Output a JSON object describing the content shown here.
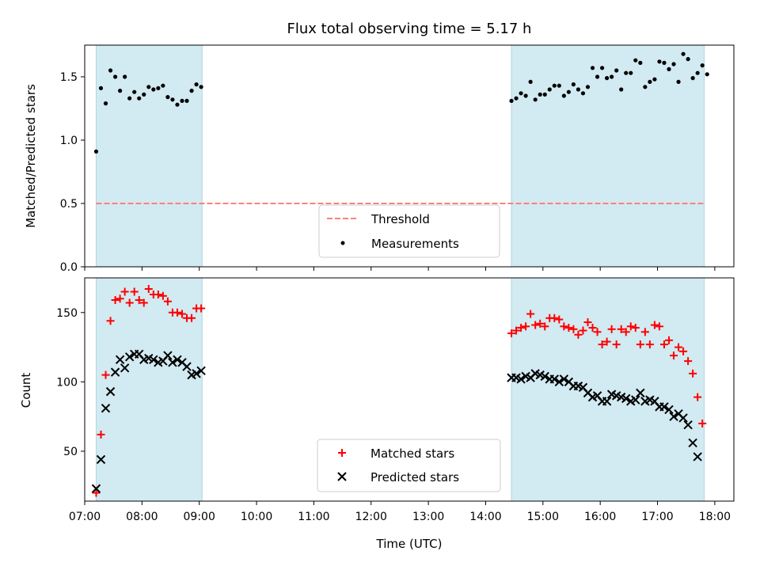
{
  "chart_data": [
    {
      "type": "scatter",
      "title": "Flux total observing time = 5.17 h",
      "xlabel": "",
      "ylabel": "Matched/Predicted stars",
      "xlim": [
        "07:00",
        "18:20"
      ],
      "ylim": [
        0,
        1.75
      ],
      "yticks": [
        "0.0",
        "0.5",
        "1.0",
        "1.5"
      ],
      "grid": false,
      "legend_position": "bottom-center",
      "observing_windows": [
        [
          "07:12",
          "09:03"
        ],
        [
          "14:27",
          "17:49"
        ]
      ],
      "colors": {
        "window": "#add8e6",
        "threshold": "#ff7f7f",
        "measurements": "#000000"
      },
      "threshold": {
        "name": "Threshold",
        "value": 0.5,
        "x_range": [
          "07:12",
          "17:49"
        ]
      },
      "series": [
        {
          "name": "Measurements",
          "points": [
            [
              "07:12",
              0.91
            ],
            [
              "07:17",
              1.41
            ],
            [
              "07:22",
              1.29
            ],
            [
              "07:27",
              1.55
            ],
            [
              "07:32",
              1.5
            ],
            [
              "07:37",
              1.39
            ],
            [
              "07:42",
              1.5
            ],
            [
              "07:47",
              1.33
            ],
            [
              "07:52",
              1.38
            ],
            [
              "07:57",
              1.33
            ],
            [
              "08:02",
              1.36
            ],
            [
              "08:07",
              1.42
            ],
            [
              "08:12",
              1.4
            ],
            [
              "08:17",
              1.41
            ],
            [
              "08:22",
              1.43
            ],
            [
              "08:27",
              1.34
            ],
            [
              "08:32",
              1.32
            ],
            [
              "08:37",
              1.28
            ],
            [
              "08:42",
              1.31
            ],
            [
              "08:47",
              1.31
            ],
            [
              "08:52",
              1.39
            ],
            [
              "08:57",
              1.44
            ],
            [
              "09:02",
              1.42
            ],
            [
              "14:27",
              1.31
            ],
            [
              "14:32",
              1.33
            ],
            [
              "14:37",
              1.37
            ],
            [
              "14:42",
              1.35
            ],
            [
              "14:47",
              1.46
            ],
            [
              "14:52",
              1.32
            ],
            [
              "14:57",
              1.36
            ],
            [
              "15:02",
              1.36
            ],
            [
              "15:07",
              1.4
            ],
            [
              "15:12",
              1.43
            ],
            [
              "15:17",
              1.43
            ],
            [
              "15:22",
              1.35
            ],
            [
              "15:27",
              1.38
            ],
            [
              "15:32",
              1.44
            ],
            [
              "15:37",
              1.4
            ],
            [
              "15:42",
              1.37
            ],
            [
              "15:47",
              1.42
            ],
            [
              "15:52",
              1.57
            ],
            [
              "15:57",
              1.5
            ],
            [
              "16:02",
              1.57
            ],
            [
              "16:07",
              1.49
            ],
            [
              "16:12",
              1.5
            ],
            [
              "16:17",
              1.55
            ],
            [
              "16:22",
              1.4
            ],
            [
              "16:27",
              1.53
            ],
            [
              "16:32",
              1.53
            ],
            [
              "16:37",
              1.63
            ],
            [
              "16:42",
              1.61
            ],
            [
              "16:47",
              1.42
            ],
            [
              "16:52",
              1.46
            ],
            [
              "16:57",
              1.48
            ],
            [
              "17:02",
              1.62
            ],
            [
              "17:07",
              1.61
            ],
            [
              "17:12",
              1.56
            ],
            [
              "17:17",
              1.6
            ],
            [
              "17:22",
              1.46
            ],
            [
              "17:27",
              1.68
            ],
            [
              "17:32",
              1.64
            ],
            [
              "17:37",
              1.49
            ],
            [
              "17:42",
              1.53
            ],
            [
              "17:47",
              1.59
            ],
            [
              "17:52",
              1.52
            ]
          ]
        }
      ]
    },
    {
      "type": "scatter",
      "title": "",
      "xlabel": "Time (UTC)",
      "ylabel": "Count",
      "xlim": [
        "07:00",
        "18:20"
      ],
      "ylim": [
        14,
        175
      ],
      "yticks": [
        "50",
        "100",
        "150"
      ],
      "xticks": [
        "07:00",
        "08:00",
        "09:00",
        "10:00",
        "11:00",
        "12:00",
        "13:00",
        "14:00",
        "15:00",
        "16:00",
        "17:00",
        "18:00"
      ],
      "grid": false,
      "legend_position": "bottom-center",
      "observing_windows": [
        [
          "07:12",
          "09:03"
        ],
        [
          "14:27",
          "17:49"
        ]
      ],
      "colors": {
        "window": "#add8e6",
        "matched": "#ff0000",
        "predicted": "#000000"
      },
      "series": [
        {
          "name": "Matched stars",
          "marker": "plus",
          "points": [
            [
              "07:12",
              20
            ],
            [
              "07:17",
              62
            ],
            [
              "07:22",
              105
            ],
            [
              "07:27",
              144
            ],
            [
              "07:32",
              159
            ],
            [
              "07:37",
              160
            ],
            [
              "07:42",
              165
            ],
            [
              "07:47",
              157
            ],
            [
              "07:52",
              165
            ],
            [
              "07:57",
              159
            ],
            [
              "08:02",
              157
            ],
            [
              "08:07",
              167
            ],
            [
              "08:12",
              163
            ],
            [
              "08:17",
              163
            ],
            [
              "08:22",
              162
            ],
            [
              "08:27",
              158
            ],
            [
              "08:32",
              150
            ],
            [
              "08:37",
              150
            ],
            [
              "08:42",
              149
            ],
            [
              "08:47",
              146
            ],
            [
              "08:52",
              146
            ],
            [
              "08:57",
              153
            ],
            [
              "09:02",
              153
            ],
            [
              "14:27",
              135
            ],
            [
              "14:32",
              137
            ],
            [
              "14:37",
              139
            ],
            [
              "14:42",
              140
            ],
            [
              "14:47",
              149
            ],
            [
              "14:52",
              141
            ],
            [
              "14:57",
              142
            ],
            [
              "15:02",
              140
            ],
            [
              "15:07",
              146
            ],
            [
              "15:12",
              146
            ],
            [
              "15:17",
              145
            ],
            [
              "15:22",
              140
            ],
            [
              "15:27",
              139
            ],
            [
              "15:32",
              138
            ],
            [
              "15:37",
              134
            ],
            [
              "15:42",
              137
            ],
            [
              "15:47",
              143
            ],
            [
              "15:52",
              139
            ],
            [
              "15:57",
              136
            ],
            [
              "16:02",
              127
            ],
            [
              "16:07",
              129
            ],
            [
              "16:12",
              138
            ],
            [
              "16:17",
              127
            ],
            [
              "16:22",
              138
            ],
            [
              "16:27",
              136
            ],
            [
              "16:32",
              140
            ],
            [
              "16:37",
              139
            ],
            [
              "16:42",
              127
            ],
            [
              "16:47",
              136
            ],
            [
              "16:52",
              127
            ],
            [
              "16:57",
              141
            ],
            [
              "17:02",
              140
            ],
            [
              "17:07",
              127
            ],
            [
              "17:12",
              130
            ],
            [
              "17:17",
              119
            ],
            [
              "17:22",
              125
            ],
            [
              "17:27",
              122
            ],
            [
              "17:32",
              115
            ],
            [
              "17:37",
              106
            ],
            [
              "17:42",
              89
            ],
            [
              "17:47",
              70
            ]
          ]
        },
        {
          "name": "Predicted stars",
          "marker": "x",
          "points": [
            [
              "07:12",
              23
            ],
            [
              "07:17",
              44
            ],
            [
              "07:22",
              81
            ],
            [
              "07:27",
              93
            ],
            [
              "07:32",
              107
            ],
            [
              "07:37",
              116
            ],
            [
              "07:42",
              110
            ],
            [
              "07:47",
              118
            ],
            [
              "07:52",
              120
            ],
            [
              "07:57",
              120
            ],
            [
              "08:02",
              116
            ],
            [
              "08:07",
              117
            ],
            [
              "08:12",
              116
            ],
            [
              "08:17",
              114
            ],
            [
              "08:22",
              115
            ],
            [
              "08:27",
              119
            ],
            [
              "08:32",
              114
            ],
            [
              "08:37",
              116
            ],
            [
              "08:42",
              114
            ],
            [
              "08:47",
              111
            ],
            [
              "08:52",
              105
            ],
            [
              "08:57",
              106
            ],
            [
              "09:02",
              108
            ],
            [
              "14:27",
              103
            ],
            [
              "14:32",
              103
            ],
            [
              "14:37",
              102
            ],
            [
              "14:42",
              104
            ],
            [
              "14:47",
              103
            ],
            [
              "14:52",
              106
            ],
            [
              "14:57",
              105
            ],
            [
              "15:02",
              104
            ],
            [
              "15:07",
              102
            ],
            [
              "15:12",
              102
            ],
            [
              "15:17",
              100
            ],
            [
              "15:22",
              102
            ],
            [
              "15:27",
              100
            ],
            [
              "15:32",
              97
            ],
            [
              "15:37",
              97
            ],
            [
              "15:42",
              96
            ],
            [
              "15:47",
              92
            ],
            [
              "15:52",
              89
            ],
            [
              "15:57",
              90
            ],
            [
              "16:02",
              86
            ],
            [
              "16:07",
              86
            ],
            [
              "16:12",
              91
            ],
            [
              "16:17",
              90
            ],
            [
              "16:22",
              89
            ],
            [
              "16:27",
              88
            ],
            [
              "16:32",
              86
            ],
            [
              "16:37",
              87
            ],
            [
              "16:42",
              92
            ],
            [
              "16:47",
              86
            ],
            [
              "16:52",
              87
            ],
            [
              "16:57",
              86
            ],
            [
              "17:02",
              82
            ],
            [
              "17:07",
              82
            ],
            [
              "17:12",
              80
            ],
            [
              "17:17",
              75
            ],
            [
              "17:22",
              77
            ],
            [
              "17:27",
              74
            ],
            [
              "17:32",
              69
            ],
            [
              "17:37",
              56
            ],
            [
              "17:42",
              46
            ]
          ]
        }
      ]
    }
  ]
}
